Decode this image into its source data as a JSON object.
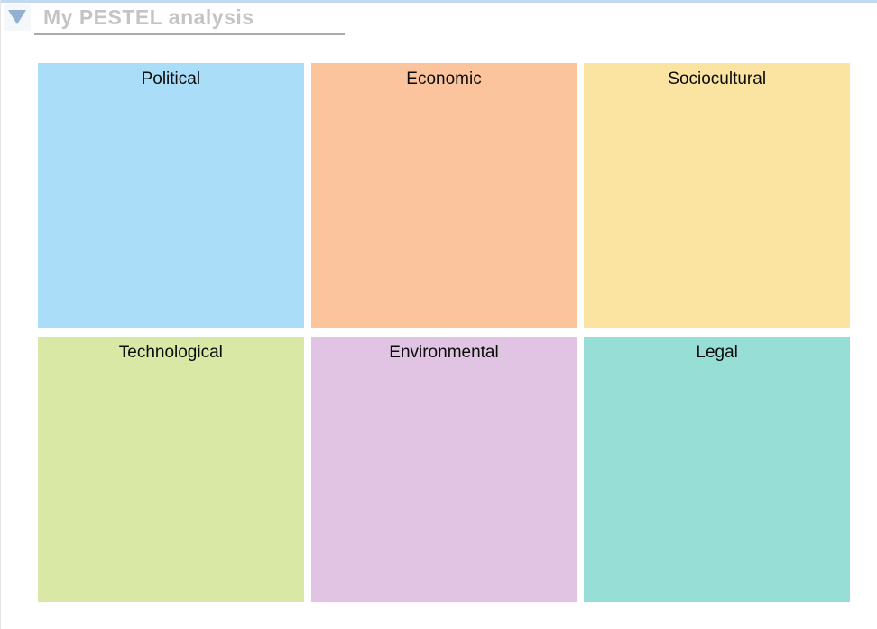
{
  "header": {
    "title": "My PESTEL analysis"
  },
  "accents": {
    "top_line_color": "#c3d9ee",
    "triangle_color": "#92b1d1",
    "title_color": "#c4c4c4",
    "underline_color": "#ababab"
  },
  "grid": {
    "cells": [
      {
        "label": "Political",
        "bg": "#aadef8"
      },
      {
        "label": "Economic",
        "bg": "#fcc49d"
      },
      {
        "label": "Sociocultural",
        "bg": "#fbe4a1"
      },
      {
        "label": "Technological",
        "bg": "#d9e9a5"
      },
      {
        "label": "Environmental",
        "bg": "#e1c4e3"
      },
      {
        "label": "Legal",
        "bg": "#96ded6"
      }
    ]
  }
}
